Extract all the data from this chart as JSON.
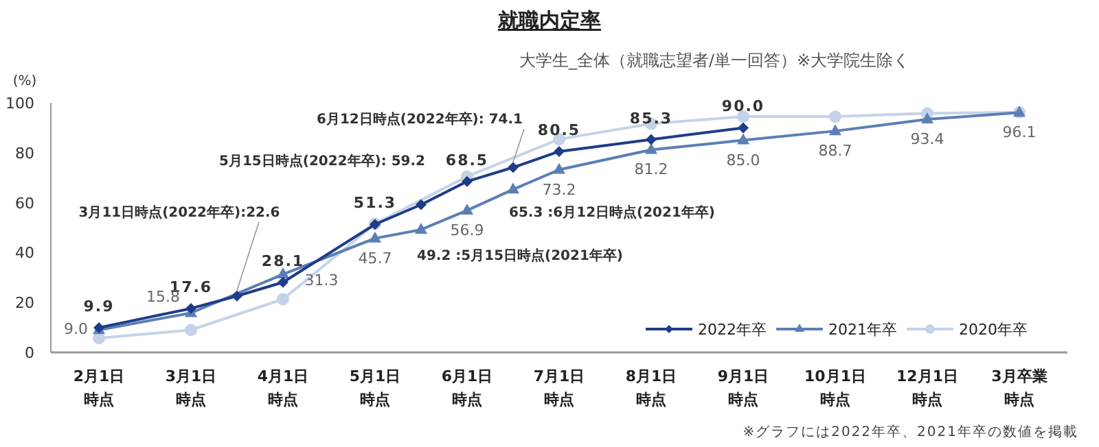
{
  "chart_data": {
    "type": "line",
    "title": "就職内定率",
    "subtitle": "大学生_全体（就職志望者/単一回答）※大学院生除く",
    "ylabel": "(%)",
    "categories": [
      "2月1日時点",
      "3月1日時点",
      null,
      "4月1日時点",
      "5月1日時点",
      null,
      "6月1日時点",
      null,
      "7月1日時点",
      "8月1日時点",
      "9月1日時点",
      "10月1日時点",
      "12月1日時点",
      "3月卒業時点"
    ],
    "ylim": [
      0,
      100
    ],
    "yticks": [
      0,
      20,
      40,
      60,
      80,
      100
    ],
    "grid": false,
    "legend": "bottom right",
    "series": [
      {
        "name": "2022年卒",
        "color": "#1f3c88",
        "marker": "diamond",
        "values": [
          9.9,
          17.6,
          22.6,
          28.1,
          51.3,
          59.2,
          68.5,
          74.1,
          80.5,
          85.3,
          90.0,
          null,
          null,
          null
        ],
        "value_labels": [
          "9.9",
          "17.6",
          "3月11日時点(2022年卒):22.6",
          "28.1",
          "51.3",
          "5月15日時点(2022年卒): 59.2",
          "68.5",
          "6月12日時点(2022年卒): 74.1",
          "80.5",
          "85.3",
          "90.0",
          null,
          null,
          null
        ]
      },
      {
        "name": "2021年卒",
        "color": "#5b7fb5",
        "marker": "triangle",
        "values": [
          9.0,
          15.8,
          null,
          31.3,
          45.7,
          49.2,
          56.9,
          65.3,
          73.2,
          81.2,
          85.0,
          88.7,
          93.4,
          96.1
        ],
        "value_labels": [
          "9.0",
          "15.8",
          null,
          "31.3",
          "45.7",
          "49.2 :5月15日時点(2021年卒)",
          "56.9",
          "65.3 :6月12日時点(2021年卒)",
          "73.2",
          "81.2",
          "85.0",
          "88.7",
          "93.4",
          "96.1"
        ]
      },
      {
        "name": "2020年卒",
        "color": "#c5d3e8",
        "marker": "circle",
        "values": [
          5.7,
          9.0,
          null,
          21.3,
          51.5,
          null,
          70.5,
          null,
          85.4,
          91.6,
          94.5,
          94.5,
          95.8,
          96.2
        ]
      }
    ],
    "annotations": [
      "※グラフには2022年卒、2021年卒の数値を掲載"
    ]
  }
}
